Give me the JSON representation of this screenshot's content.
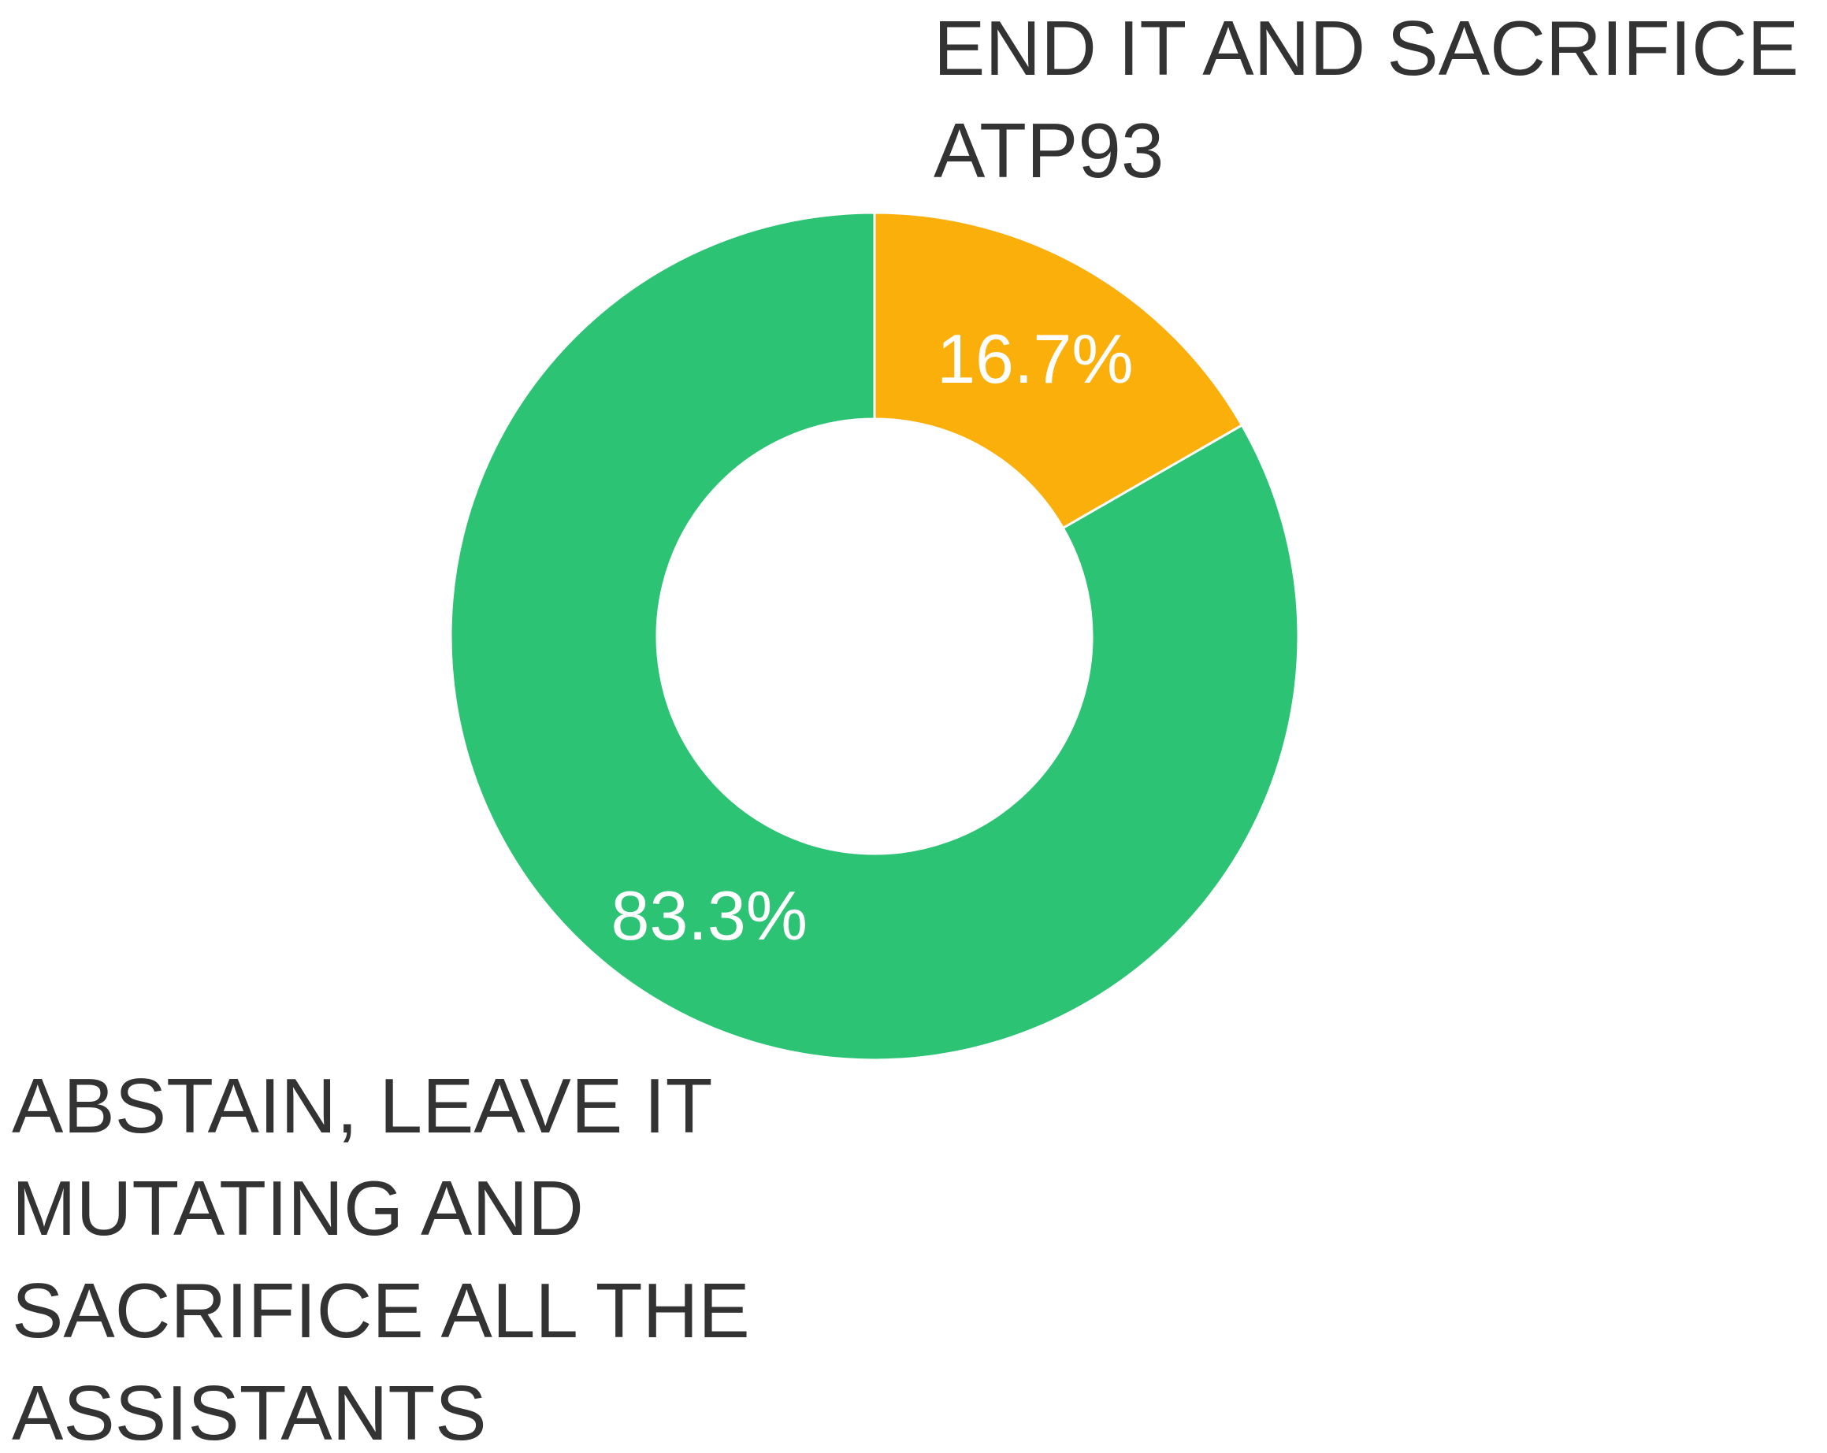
{
  "chart_data": {
    "type": "pie",
    "donut": true,
    "title": "",
    "slices": [
      {
        "label_lines": [
          "END IT AND SACRIFICE",
          "ATP93"
        ],
        "value": 16.7,
        "value_label": "16.7%",
        "color": "#FBAF0B"
      },
      {
        "label_lines": [
          "ABSTAIN, LEAVE IT",
          "MUTATING AND",
          "SACRIFICE ALL THE",
          "ASSISTANTS"
        ],
        "value": 83.3,
        "value_label": "83.3%",
        "color": "#2DC374"
      }
    ],
    "legend": "none",
    "start_angle": "12 o'clock",
    "direction": "clockwise"
  }
}
